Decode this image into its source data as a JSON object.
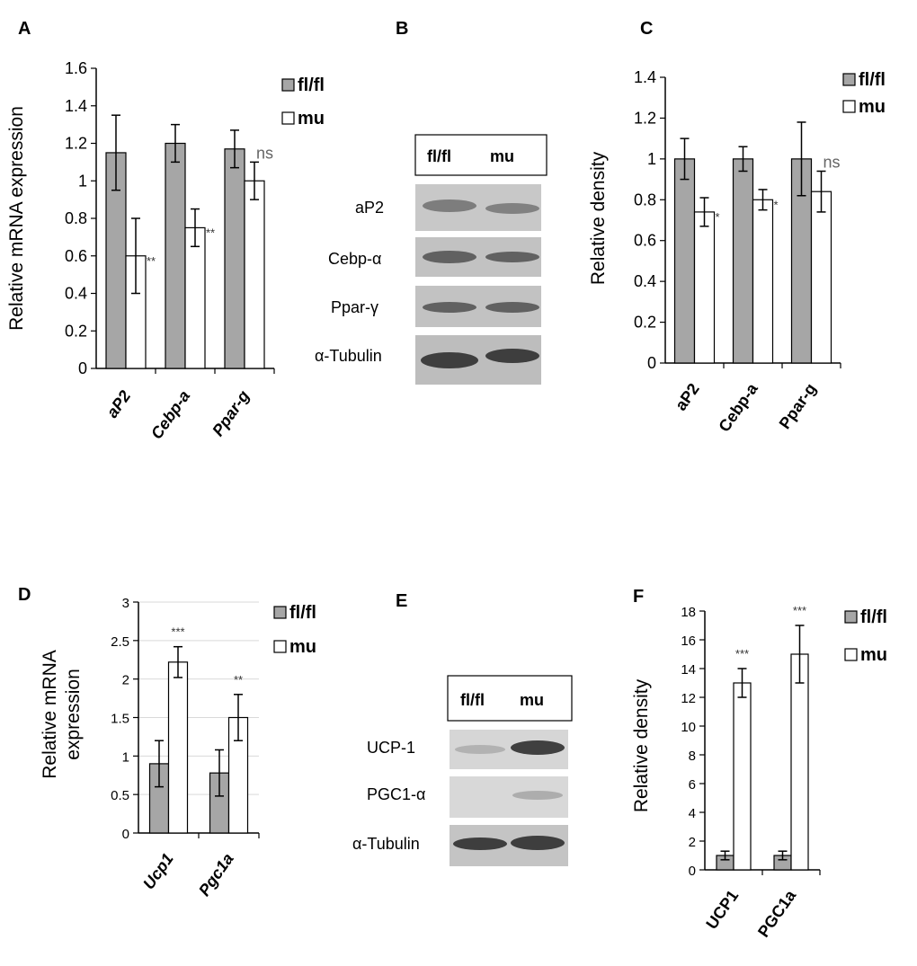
{
  "panel_labels": {
    "A": "A",
    "B": "B",
    "C": "C",
    "D": "D",
    "E": "E",
    "F": "F"
  },
  "legend": {
    "fl": "fl/fl",
    "mu": "mu"
  },
  "colors": {
    "fl": "#a6a6a6",
    "mu": "#ffffff",
    "axis": "#000000",
    "grid": "#d9d9d9"
  },
  "blot_B": {
    "header": [
      "fl/fl",
      "mu"
    ],
    "rows": [
      "aP2",
      "Cebp-α",
      "Ppar-γ",
      "α-Tubulin"
    ]
  },
  "blot_E": {
    "header": [
      "fl/fl",
      "mu"
    ],
    "rows": [
      "UCP-1",
      "PGC1-α",
      "α-Tubulin"
    ]
  },
  "chart_data": [
    {
      "panel": "A",
      "type": "bar",
      "categories": [
        "aP2",
        "Cebp-a",
        "Ppar-g"
      ],
      "series": [
        {
          "name": "fl/fl",
          "values": [
            1.15,
            1.2,
            1.17
          ],
          "errors": [
            0.2,
            0.1,
            0.1
          ]
        },
        {
          "name": "mu",
          "values": [
            0.6,
            0.75,
            1.0
          ],
          "errors": [
            0.2,
            0.1,
            0.1
          ]
        }
      ],
      "annotations": [
        "**",
        "**",
        "ns"
      ],
      "ylabel": "Relative mRNA expression",
      "ylim": [
        0,
        1.6
      ],
      "yticks": [
        "0",
        "0.2",
        "0.4",
        "0.6",
        "0.8",
        "1",
        "1.2",
        "1.4",
        "1.6"
      ],
      "grid": false,
      "category_italic": true,
      "legend_position": "top-right"
    },
    {
      "panel": "C",
      "type": "bar",
      "categories": [
        "aP2",
        "Cebp-a",
        "Ppar-g"
      ],
      "series": [
        {
          "name": "fl/fl",
          "values": [
            1.0,
            1.0,
            1.0
          ],
          "errors": [
            0.1,
            0.06,
            0.18
          ]
        },
        {
          "name": "mu",
          "values": [
            0.74,
            0.8,
            0.84
          ],
          "errors": [
            0.07,
            0.05,
            0.1
          ]
        }
      ],
      "annotations": [
        "*",
        "*",
        "ns"
      ],
      "ylabel": "Relative density",
      "ylim": [
        0,
        1.4
      ],
      "yticks": [
        "0",
        "0.2",
        "0.4",
        "0.6",
        "0.8",
        "1",
        "1.2",
        "1.4"
      ],
      "grid": false,
      "category_italic": false,
      "legend_position": "top-right"
    },
    {
      "panel": "D",
      "type": "bar",
      "categories": [
        "Ucp1",
        "Pgc1a"
      ],
      "series": [
        {
          "name": "fl/fl",
          "values": [
            0.9,
            0.78
          ],
          "errors": [
            0.3,
            0.3
          ]
        },
        {
          "name": "mu",
          "values": [
            2.22,
            1.5
          ],
          "errors": [
            0.2,
            0.3
          ]
        }
      ],
      "annotations": [
        "***",
        "**"
      ],
      "ylabel": [
        "Relative mRNA",
        "expression"
      ],
      "ylim": [
        0,
        3
      ],
      "yticks": [
        "0",
        "0.5",
        "1",
        "1.5",
        "2",
        "2.5",
        "3"
      ],
      "grid": true,
      "category_italic": true,
      "legend_position": "top-right"
    },
    {
      "panel": "F",
      "type": "bar",
      "categories": [
        "UCP1",
        "PGC1a"
      ],
      "series": [
        {
          "name": "fl/fl",
          "values": [
            1.0,
            1.0
          ],
          "errors": [
            0.3,
            0.3
          ]
        },
        {
          "name": "mu",
          "values": [
            13.0,
            15.0
          ],
          "errors": [
            1.0,
            2.0
          ]
        }
      ],
      "annotations": [
        "***",
        "***"
      ],
      "ylabel": "Relative density",
      "ylim": [
        0,
        18
      ],
      "yticks": [
        "0",
        "2",
        "4",
        "6",
        "8",
        "10",
        "12",
        "14",
        "16",
        "18"
      ],
      "grid": false,
      "category_italic": false,
      "legend_position": "top-right"
    }
  ]
}
